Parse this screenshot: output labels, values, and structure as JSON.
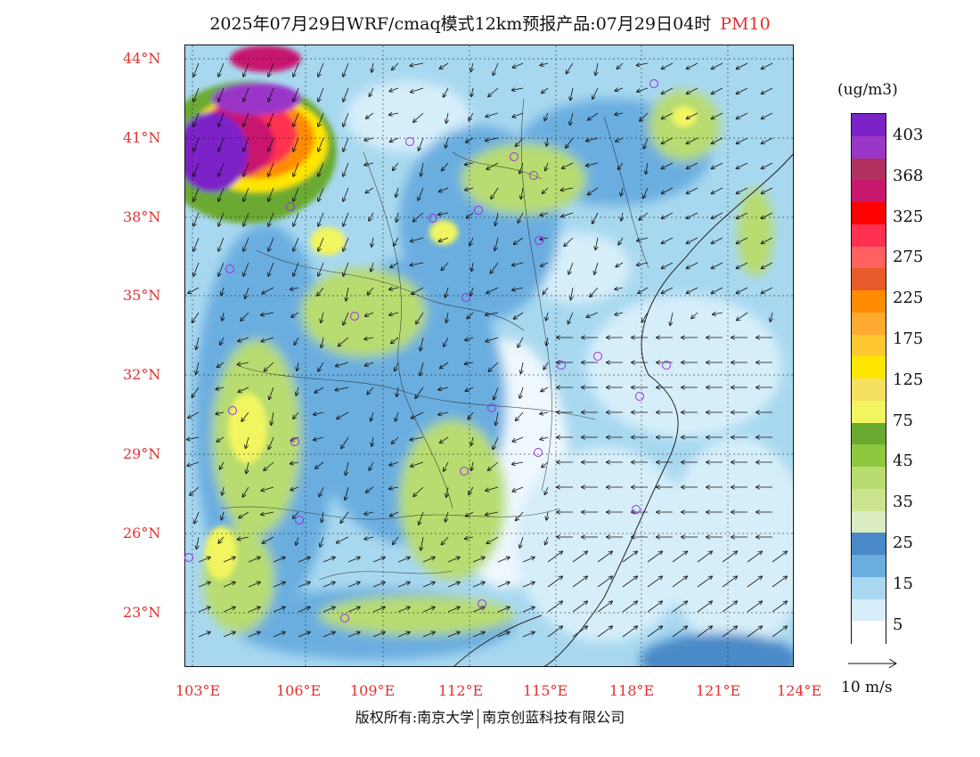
{
  "title": {
    "main": "2025年07月29日WRF/cmaq模式12km预报产品:07月29日04时",
    "pollutant": "PM10"
  },
  "axes": {
    "lat_labels": [
      "44°N",
      "41°N",
      "38°N",
      "35°N",
      "32°N",
      "29°N",
      "26°N",
      "23°N"
    ],
    "lon_labels": [
      "103°E",
      "106°E",
      "109°E",
      "112°E",
      "115°E",
      "118°E",
      "121°E",
      "124°E"
    ]
  },
  "legend": {
    "unit": "(ug/m3)",
    "ticks": [
      "403",
      "368",
      "325",
      "275",
      "225",
      "175",
      "125",
      "75",
      "45",
      "35",
      "25",
      "15",
      "5"
    ],
    "colors": [
      "#7b22c8",
      "#9a36c8",
      "#b03060",
      "#c8186e",
      "#ff0000",
      "#ff3050",
      "#ff6060",
      "#e85a2a",
      "#ff8c00",
      "#ffaa30",
      "#ffc830",
      "#ffe600",
      "#f6e060",
      "#f0f560",
      "#6aaa30",
      "#8cc840",
      "#b8dc70",
      "#cce490",
      "#dbecc0",
      "#4a8ac8",
      "#6aaee0",
      "#a8d8f0",
      "#d6eefa",
      "#ffffff"
    ]
  },
  "wind_key": {
    "label": "10 m/s"
  },
  "copyright": {
    "left": "版权所有:南京大学",
    "right": "南京创蓝科技有限公司"
  },
  "colors": {
    "label_red": "#e03030",
    "city_marker": "#9a2be0"
  }
}
